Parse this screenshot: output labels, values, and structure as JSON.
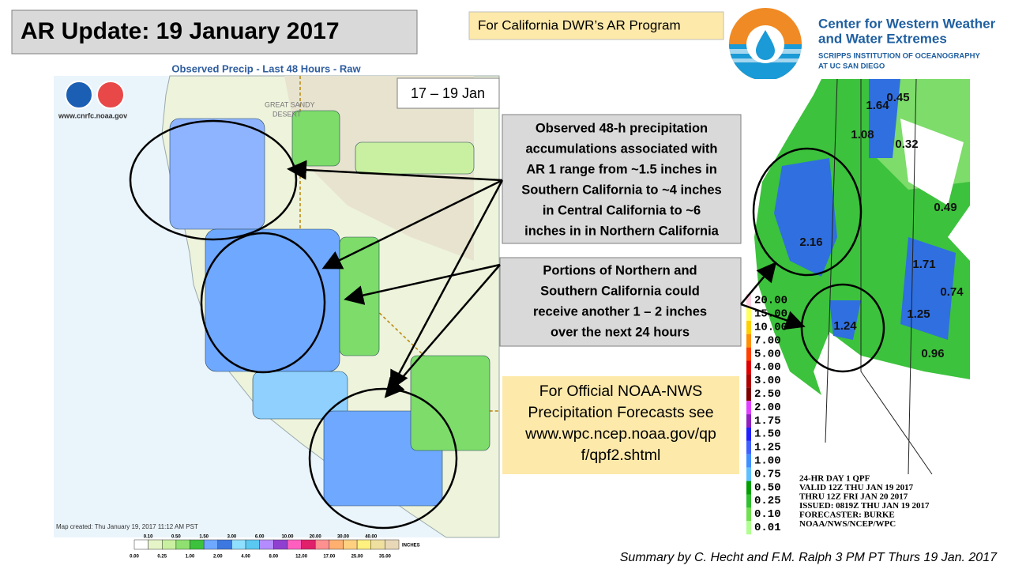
{
  "header": {
    "title": "AR Update: 19 January 2017",
    "program": "For California DWR’s AR Program"
  },
  "logo": {
    "name": [
      "Center for Western Weather",
      "and Water Extremes"
    ],
    "institution": [
      "SCRIPPS INSTITUTION OF OCEANOGRAPHY",
      "AT UC SAN DIEGO"
    ]
  },
  "left_map": {
    "title": "Observed Precip - Last 48 Hours - Raw",
    "source": "www.cnrfc.noaa.gov",
    "date_range": "17 – 19 Jan",
    "created": "Map created: Thu January 19, 2017 11:12 AM PST",
    "legend_top": [
      "0.10",
      "0.50",
      "1.50",
      "3.00",
      "6.00",
      "10.00",
      "20.00",
      "30.00",
      "40.00"
    ],
    "legend_bottom": [
      "0.00",
      "0.25",
      "1.00",
      "2.00",
      "4.00",
      "8.00",
      "12.00",
      "17.00",
      "25.00",
      "35.00"
    ],
    "legend_unit": "INCHES",
    "places": [
      "GREAT SANDY",
      "DESERT"
    ]
  },
  "callouts": {
    "observed": [
      "Observed 48-h precipitation",
      "accumulations associated with",
      "AR 1 range from ~1.5 inches in",
      "Southern California to ~4 inches",
      "in Central California to ~6",
      "inches in in Northern California"
    ],
    "forecast": [
      "Portions of Northern and",
      "Southern California could",
      "receive another  1 – 2 inches",
      "over the next 24 hours"
    ],
    "official": [
      "For Official NOAA-NWS",
      "Precipitation Forecasts see",
      "www.wpc.ncep.noaa.gov/qp",
      "f/qpf2.shtml"
    ]
  },
  "right_map": {
    "amounts": [
      "0.45",
      "1.64",
      "1.08",
      "0.32",
      "2.16",
      "0.49",
      "1.71",
      "0.74",
      "1.24",
      "1.25",
      "0.96"
    ],
    "legend": [
      "20.00",
      "15.00",
      "10.00",
      "7.00",
      "5.00",
      "4.00",
      "3.00",
      "2.50",
      "2.00",
      "1.75",
      "1.50",
      "1.25",
      "1.00",
      "0.75",
      "0.50",
      "0.25",
      "0.10",
      "0.01"
    ],
    "caption": [
      "24-HR DAY 1 QPF",
      "VALID 12Z THU JAN 19 2017",
      "THRU 12Z FRI JAN 20 2017",
      "ISSUED: 0819Z THU JAN 19 2017",
      "FORECASTER: BURKE",
      "NOAA/NWS/NCEP/WPC"
    ]
  },
  "footer": "Summary by C. Hecht and F.M. Ralph 3 PM PT Thurs 19 Jan. 2017"
}
